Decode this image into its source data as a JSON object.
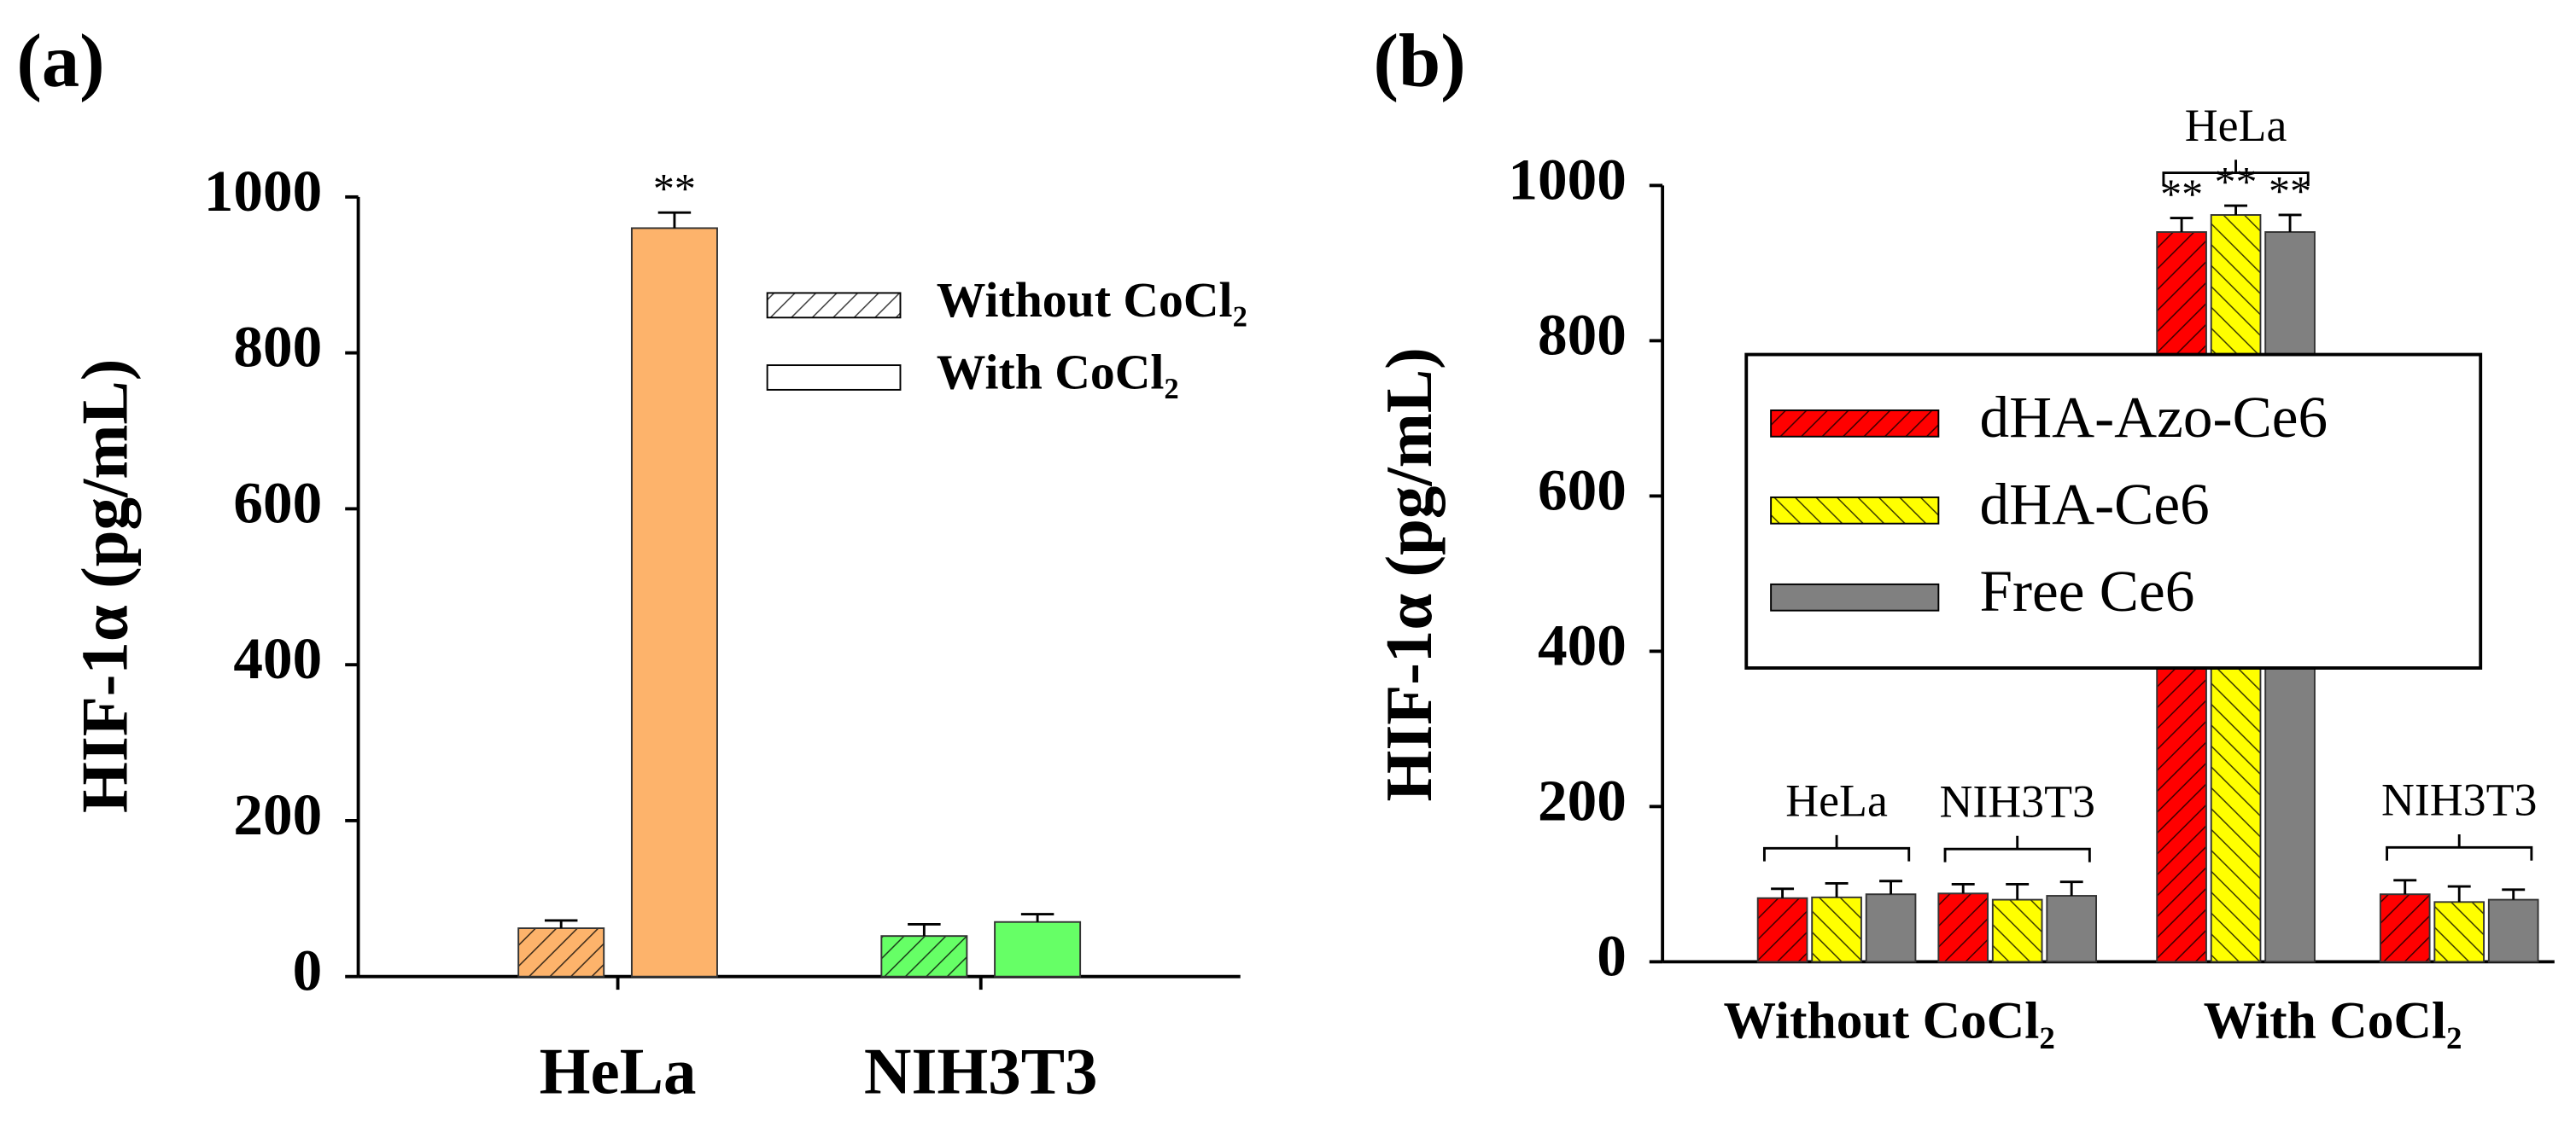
{
  "chart_data": [
    {
      "type": "bar",
      "panel_label": "(a)",
      "ylabel": "HIF-1α (pg/mL)",
      "categories": [
        "HeLa",
        "NIH3T3"
      ],
      "category_colors": [
        "#fdb36b",
        "#66ff66"
      ],
      "series": [
        {
          "name": "Without CoCl₂",
          "hatch": "/",
          "values": [
            62,
            52
          ],
          "errors": [
            10,
            15
          ]
        },
        {
          "name": "With CoCl₂",
          "hatch": null,
          "values": [
            960,
            70
          ],
          "errors": [
            20,
            10
          ],
          "annotations": [
            "**",
            null
          ]
        }
      ],
      "ylim": [
        0,
        1000
      ],
      "yticks": [
        0,
        200,
        400,
        600,
        800,
        1000
      ],
      "legend": "upper right",
      "legend_frame": false
    },
    {
      "type": "bar",
      "panel_label": "(b)",
      "ylabel": "HIF-1α (pg/mL)",
      "categories": [
        "HeLa",
        "NIH3T3",
        "HeLa",
        "NIH3T3"
      ],
      "groups": [
        "Without CoCl₂",
        "With CoCl₂"
      ],
      "series": [
        {
          "name": "dHA-Azo-Ce6",
          "color": "#ff0000",
          "hatch": "/",
          "values": [
            82,
            88,
            940,
            87
          ],
          "errors": [
            12,
            12,
            18,
            18
          ],
          "annotations": [
            null,
            null,
            "**",
            null
          ]
        },
        {
          "name": "dHA-Ce6",
          "color": "#ffff00",
          "hatch": "\\",
          "values": [
            83,
            80,
            962,
            77
          ],
          "errors": [
            18,
            20,
            12,
            20
          ],
          "annotations": [
            null,
            null,
            "**",
            null
          ]
        },
        {
          "name": "Free Ce6",
          "color": "#808080",
          "hatch": null,
          "values": [
            87,
            85,
            940,
            80
          ],
          "errors": [
            17,
            18,
            22,
            13
          ],
          "annotations": [
            null,
            null,
            "**",
            null
          ]
        }
      ],
      "ylim": [
        0,
        1000
      ],
      "yticks": [
        0,
        200,
        400,
        600,
        800,
        1000
      ],
      "legend": "center",
      "legend_frame": true
    }
  ]
}
